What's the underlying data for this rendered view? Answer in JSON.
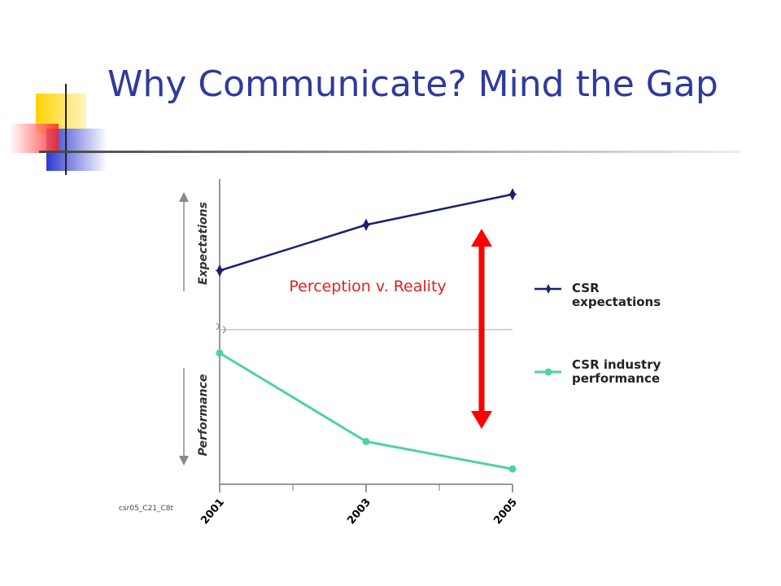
{
  "title": "Why Communicate?  Mind the Gap",
  "chart_data": {
    "type": "line",
    "categories": [
      "2001",
      "2003",
      "2005"
    ],
    "series": [
      {
        "name": "CSR expectations",
        "color": "#1a1f6e",
        "values": [
          70,
          85,
          95
        ]
      },
      {
        "name": "CSR industry performance",
        "color": "#4fd1a5",
        "values": [
          43,
          14,
          5
        ]
      }
    ],
    "ylim": [
      0,
      100
    ],
    "y_labels": [
      "Expectations",
      "Performance"
    ],
    "annotation": "Perception v. Reality",
    "source": "csr05_C21_C8t"
  }
}
